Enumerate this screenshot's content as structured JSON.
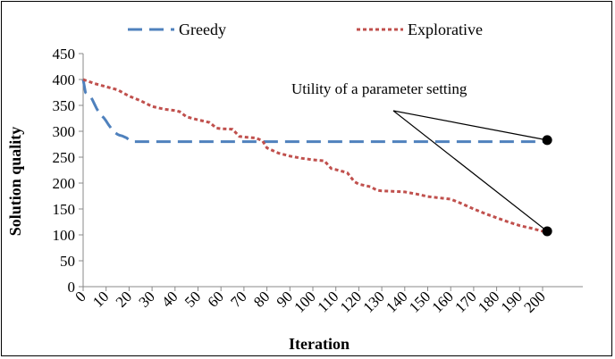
{
  "chart_data": {
    "type": "line",
    "title": "",
    "xlabel": "Iteration",
    "ylabel": "Solution quality",
    "xlim": [
      0,
      200
    ],
    "ylim": [
      0,
      450
    ],
    "x_ticks": [
      "0",
      "10",
      "20",
      "30",
      "40",
      "50",
      "60",
      "70",
      "80",
      "90",
      "100",
      "110",
      "120",
      "130",
      "140",
      "150",
      "160",
      "170",
      "180",
      "190",
      "200"
    ],
    "y_ticks": [
      "0",
      "50",
      "100",
      "150",
      "200",
      "250",
      "300",
      "350",
      "400",
      "450"
    ],
    "grid": false,
    "legend_position": "top",
    "series": [
      {
        "name": "Greedy",
        "color": "#4F81BD",
        "style": "long-dash",
        "x": [
          0,
          1,
          2,
          3,
          4,
          5,
          6,
          7,
          8,
          9,
          10,
          11,
          12,
          13,
          14,
          15,
          16,
          17,
          18,
          19,
          20,
          21,
          22,
          25,
          30,
          50,
          100,
          150,
          200,
          202
        ],
        "y": [
          400,
          375,
          372,
          368,
          361,
          352,
          343,
          336,
          330,
          326,
          320,
          313,
          307,
          301,
          297,
          294,
          292,
          291,
          289,
          287,
          283,
          281,
          280,
          280,
          280,
          280,
          280,
          280,
          280,
          280
        ]
      },
      {
        "name": "Explorative",
        "color": "#C0504D",
        "style": "dotted",
        "x": [
          0,
          5,
          10,
          15,
          20,
          25,
          30,
          35,
          40,
          42,
          45,
          50,
          55,
          58,
          60,
          65,
          68,
          70,
          75,
          78,
          80,
          85,
          90,
          95,
          100,
          105,
          108,
          110,
          115,
          118,
          120,
          125,
          128,
          130,
          140,
          145,
          150,
          160,
          165,
          170,
          175,
          180,
          185,
          190,
          195,
          200,
          202
        ],
        "y": [
          400,
          392,
          386,
          380,
          368,
          359,
          348,
          343,
          340,
          338,
          328,
          322,
          317,
          306,
          305,
          304,
          290,
          289,
          287,
          282,
          268,
          258,
          252,
          248,
          245,
          243,
          228,
          226,
          220,
          203,
          198,
          193,
          186,
          185,
          183,
          179,
          174,
          169,
          160,
          150,
          141,
          133,
          125,
          118,
          113,
          107,
          106
        ]
      }
    ],
    "annotation": {
      "text": "Utility of a parameter setting",
      "points": [
        {
          "x": 202,
          "y": 283
        },
        {
          "x": 202,
          "y": 107
        }
      ]
    }
  }
}
